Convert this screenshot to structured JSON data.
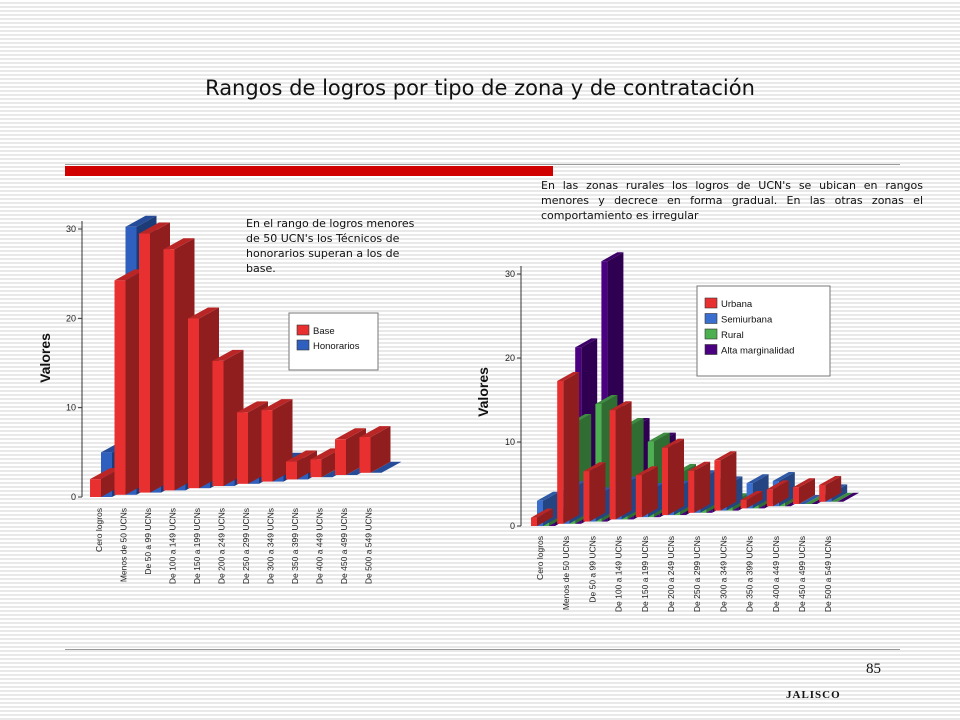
{
  "title": "Rangos de logros por tipo de zona y de contratación",
  "notes": {
    "left": "En el rango de logros menores de 50 UCN's los Técnicos de honorarios superan a los de base.",
    "right": "En las zonas rurales los logros de UCN's se ubican en rangos menores y decrece en forma gradual. En las otras zonas el comportamiento es irregular"
  },
  "page_number": "85",
  "footer": "JALISCO",
  "colors": {
    "base": "#e83030",
    "honorarios": "#2f5fbf",
    "urbana": "#e83030",
    "semiurbana": "#3a6fd0",
    "rural": "#4caf50",
    "alta": "#4b0082"
  },
  "chart_data": [
    {
      "type": "bar",
      "ylabel": "Valores",
      "ylim": [
        0,
        30
      ],
      "yticks": [
        "0",
        "10",
        "20",
        "30"
      ],
      "categories": [
        "Cero logros",
        "Menos de 50 UCNs",
        "De 50 a 99 UCNs",
        "De 100 a 149 UCNs",
        "De 150 a 199 UCNs",
        "De 200 a 249 UCNs",
        "De 250 a 299 UCNs",
        "De 300 a 349 UCNs",
        "De 350 a 399 UCNs",
        "De 400 a 449 UCNs",
        "De 450 a 499 UCNs",
        "De 500 a 549 UCNs"
      ],
      "series": [
        {
          "name": "Base",
          "color": "#e83030",
          "values": [
            2,
            24,
            29,
            27,
            19,
            14,
            8,
            8,
            2,
            2,
            4,
            4
          ]
        },
        {
          "name": "Honorarios",
          "color": "#2f5fbf",
          "values": [
            5,
            30,
            25,
            14,
            4,
            5,
            2,
            2,
            1,
            0,
            0,
            0
          ]
        }
      ],
      "legend": "inside-right"
    },
    {
      "type": "bar",
      "ylabel": "Valores",
      "ylim": [
        0,
        30
      ],
      "yticks": [
        "0",
        "10",
        "20",
        "30"
      ],
      "categories": [
        "Cero logros",
        "Menos de 50 UCNs",
        "De 50 a 99 UCNs",
        "De 100 a 149 UCNs",
        "De 150 a 199 UCNs",
        "De 200 a 249 UCNs",
        "De 250 a 299 UCNs",
        "De 300 a 349 UCNs",
        "De 350 a 399 UCNs",
        "De 400 a 449 UCNs",
        "De 450 a 499 UCNs",
        "De 500 a 549 UCNs"
      ],
      "series": [
        {
          "name": "Urbana",
          "color": "#e83030",
          "values": [
            1,
            17,
            6,
            13,
            5,
            8,
            5,
            6,
            1,
            2,
            2,
            2
          ]
        },
        {
          "name": "Semiurbana",
          "color": "#3a6fd0",
          "values": [
            3,
            4,
            3,
            4,
            3,
            3,
            4,
            3,
            3,
            3,
            0,
            1
          ]
        },
        {
          "name": "Rural",
          "color": "#4caf50",
          "values": [
            1,
            12,
            14,
            11,
            9,
            5,
            3,
            1,
            1,
            1,
            0,
            0
          ]
        },
        {
          "name": "Alta marginalidad",
          "color": "#4b0082",
          "values": [
            1,
            21,
            31,
            11,
            9,
            4,
            1,
            1,
            1,
            0,
            0,
            0
          ]
        }
      ],
      "legend": "inside-right"
    }
  ]
}
